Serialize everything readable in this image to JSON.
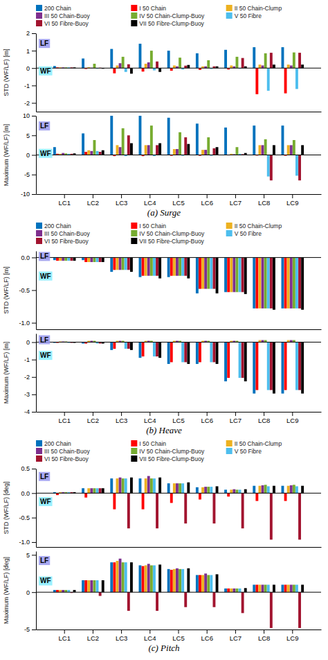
{
  "chart_data": [
    {
      "type": "bar",
      "categories": [
        "LC1",
        "LC2",
        "LC3",
        "LC4",
        "LC5",
        "LC6",
        "LC7",
        "LC8",
        "LC9"
      ],
      "series": [
        {
          "name": "200 Chain",
          "color": "#0072BD",
          "values": [
            0.12,
            0.55,
            1.1,
            1.4,
            1.0,
            0.85,
            1.05,
            1.2,
            1.2
          ]
        },
        {
          "name": "I 50 Chain",
          "color": "#FF0000",
          "values": [
            0.04,
            -0.05,
            -0.3,
            -0.2,
            -0.15,
            -0.1,
            -0.08,
            -1.5,
            -1.45
          ]
        },
        {
          "name": "II 50 Chain-Clump",
          "color": "#EDB120",
          "values": [
            0.04,
            0.05,
            0.15,
            0.25,
            0.15,
            0.1,
            0.15,
            0.2,
            0.2
          ]
        },
        {
          "name": "III 50 Chain-Buoy",
          "color": "#7E2F8E",
          "values": [
            0.04,
            0.02,
            0.28,
            0.33,
            0.1,
            0.1,
            0.1,
            0.15,
            0.15
          ]
        },
        {
          "name": "IV 50 Chain-Clump-Buoy",
          "color": "#77AC30",
          "values": [
            0.04,
            0.25,
            0.65,
            1.0,
            0.6,
            0.45,
            0.65,
            0.85,
            0.9
          ]
        },
        {
          "name": "V 50 Fibre",
          "color": "#4DBEEE",
          "values": [
            0.04,
            -0.04,
            -0.22,
            -0.13,
            -0.08,
            -0.05,
            -0.04,
            -1.3,
            -1.2
          ]
        },
        {
          "name": "VI 50 Fibre-Buoy",
          "color": "#A2142F",
          "values": [
            0.04,
            0.02,
            0.22,
            0.38,
            0.14,
            0.1,
            0.58,
            0.88,
            0.88
          ]
        },
        {
          "name": "VII 50 Fibre-Clump-Buoy",
          "color": "#000000",
          "values": [
            0.04,
            -0.04,
            -0.32,
            -0.22,
            0.18,
            0.1,
            0.1,
            0.2,
            0.2
          ]
        }
      ],
      "ylabel": "STD (WF/LF) [m]",
      "ylim": [
        -2.5,
        2.0
      ],
      "yticks": [
        -2,
        -1,
        0,
        1,
        2
      ],
      "grid": false,
      "legend": "top",
      "tick_labels": "y",
      "annotations": [
        {
          "text": "LF",
          "color": "#9999EE"
        },
        {
          "text": "WF",
          "color": "#88EEFF"
        }
      ]
    },
    {
      "type": "bar",
      "title": "(a)  Surge",
      "categories": [
        "LC1",
        "LC2",
        "LC3",
        "LC4",
        "LC5",
        "LC6",
        "LC7",
        "LC8",
        "LC9"
      ],
      "series": [
        {
          "name": "200 Chain",
          "color": "#0072BD",
          "values": [
            2.0,
            5.5,
            10.0,
            10.0,
            9.5,
            8.0,
            7.0,
            7.5,
            7.5
          ]
        },
        {
          "name": "I 50 Chain",
          "color": "#FF0000",
          "values": [
            0.3,
            0.8,
            -0.3,
            -0.3,
            -0.2,
            -0.2,
            -0.1,
            -0.15,
            -0.2
          ]
        },
        {
          "name": "II 50 Chain-Clump",
          "color": "#EDB120",
          "values": [
            0.3,
            1.2,
            2.5,
            2.5,
            1.5,
            1.3,
            0.3,
            2.5,
            2.5
          ]
        },
        {
          "name": "III 50 Chain-Buoy",
          "color": "#7E2F8E",
          "values": [
            0.5,
            1.0,
            2.0,
            2.5,
            1.5,
            1.3,
            0.2,
            2.5,
            2.5
          ]
        },
        {
          "name": "IV 50 Chain-Clump-Buoy",
          "color": "#77AC30",
          "values": [
            0.4,
            3.8,
            6.8,
            7.5,
            5.8,
            4.5,
            2.0,
            4.0,
            3.8
          ]
        },
        {
          "name": "V 50 Fibre",
          "color": "#4DBEEE",
          "values": [
            0.3,
            1.0,
            -0.3,
            -0.3,
            -0.2,
            -0.2,
            0.3,
            -5.5,
            -5.3
          ]
        },
        {
          "name": "VI 50 Fibre-Buoy",
          "color": "#A2142F",
          "values": [
            0.3,
            0.8,
            5.0,
            2.5,
            4.5,
            1.7,
            0.2,
            -6.5,
            -6.5
          ]
        },
        {
          "name": "VII 50 Fibre-Clump-Buoy",
          "color": "#000000",
          "values": [
            0.4,
            1.2,
            3.0,
            3.0,
            2.8,
            2.0,
            0.5,
            2.5,
            2.5
          ]
        }
      ],
      "ylabel": "Maximum (WF/LF) [m]",
      "ylim": [
        -10,
        10
      ],
      "yticks": [
        -10,
        -5,
        0,
        5,
        10
      ],
      "grid": false,
      "annotations": [
        {
          "text": "LF",
          "color": "#9999EE"
        },
        {
          "text": "WF",
          "color": "#88EEFF"
        }
      ]
    },
    {
      "type": "bar",
      "categories": [
        "LC1",
        "LC2",
        "LC3",
        "LC4",
        "LC5",
        "LC6",
        "LC7",
        "LC8",
        "LC9"
      ],
      "series": [
        {
          "name": "200 Chain",
          "color": "#0072BD",
          "values": [
            -0.04,
            -0.04,
            -0.22,
            -0.3,
            -0.3,
            -0.55,
            -0.53,
            -0.78,
            -0.78
          ]
        },
        {
          "name": "I 50 Chain",
          "color": "#FF0000",
          "values": [
            -0.05,
            -0.07,
            -0.19,
            -0.28,
            -0.28,
            -0.48,
            -0.53,
            -0.78,
            -0.78
          ]
        },
        {
          "name": "II 50 Chain-Clump",
          "color": "#EDB120",
          "values": [
            -0.05,
            -0.07,
            -0.19,
            -0.28,
            -0.28,
            -0.48,
            -0.53,
            -0.78,
            -0.78
          ]
        },
        {
          "name": "III 50 Chain-Buoy",
          "color": "#7E2F8E",
          "values": [
            -0.05,
            -0.07,
            -0.19,
            -0.28,
            -0.28,
            -0.48,
            -0.53,
            -0.78,
            -0.78
          ]
        },
        {
          "name": "IV 50 Chain-Clump-Buoy",
          "color": "#77AC30",
          "values": [
            -0.05,
            -0.07,
            -0.19,
            -0.28,
            -0.28,
            -0.48,
            -0.53,
            -0.78,
            -0.78
          ]
        },
        {
          "name": "V 50 Fibre",
          "color": "#4DBEEE",
          "values": [
            -0.05,
            -0.07,
            -0.19,
            -0.28,
            -0.28,
            -0.48,
            -0.53,
            -0.78,
            -0.78
          ]
        },
        {
          "name": "VI 50 Fibre-Buoy",
          "color": "#A2142F",
          "values": [
            -0.05,
            -0.07,
            -0.19,
            -0.28,
            -0.28,
            -0.48,
            -0.53,
            -0.78,
            -0.78
          ]
        },
        {
          "name": "VII 50 Fibre-Clump-Buoy",
          "color": "#000000",
          "values": [
            -0.05,
            -0.07,
            -0.22,
            -0.32,
            -0.32,
            -0.55,
            -0.56,
            -0.8,
            -0.8
          ]
        }
      ],
      "ylabel": "STD (WF/LF) [m]",
      "ylim": [
        -1.1,
        0.1
      ],
      "yticks": [
        {
          "value": -1.0,
          "label": "-1.0"
        },
        -0.5,
        {
          "value": 0.0,
          "label": "0.0"
        }
      ],
      "grid": false,
      "legend": "top",
      "tick_labels": "y",
      "annotations": [
        {
          "text": "LF",
          "color": "#9999EE"
        },
        {
          "text": "WF",
          "color": "#88EEFF"
        }
      ]
    },
    {
      "type": "bar",
      "title": "(b)  Heave",
      "categories": [
        "LC1",
        "LC2",
        "LC3",
        "LC4",
        "LC5",
        "LC6",
        "LC7",
        "LC8",
        "LC9"
      ],
      "series": [
        {
          "name": "200 Chain",
          "color": "#0072BD",
          "values": [
            -0.04,
            -0.08,
            -0.45,
            -0.9,
            -1.25,
            -1.25,
            -2.25,
            -2.95,
            -2.95
          ]
        },
        {
          "name": "I 50 Chain",
          "color": "#FF0000",
          "values": [
            -0.04,
            -0.08,
            -0.38,
            -0.82,
            -1.15,
            -1.15,
            -2.05,
            -2.75,
            -2.75
          ]
        },
        {
          "name": "II 50 Chain-Clump",
          "color": "#EDB120",
          "values": [
            0.04,
            0.08,
            0.08,
            0.08,
            0.08,
            0.08,
            0.08,
            0.12,
            0.12
          ]
        },
        {
          "name": "III 50 Chain-Buoy",
          "color": "#7E2F8E",
          "values": [
            0.04,
            0.08,
            0.08,
            0.08,
            0.08,
            0.08,
            0.08,
            0.12,
            0.12
          ]
        },
        {
          "name": "IV 50 Chain-Clump-Buoy",
          "color": "#77AC30",
          "values": [
            0.04,
            0.08,
            0.08,
            0.08,
            0.08,
            0.08,
            0.08,
            0.12,
            0.12
          ]
        },
        {
          "name": "V 50 Fibre",
          "color": "#4DBEEE",
          "values": [
            -0.04,
            -0.08,
            -0.38,
            -0.82,
            -1.15,
            -1.15,
            -2.05,
            -2.75,
            -2.75
          ]
        },
        {
          "name": "VI 50 Fibre-Buoy",
          "color": "#A2142F",
          "values": [
            -0.04,
            -0.08,
            -0.38,
            -0.82,
            -1.15,
            -1.15,
            -2.05,
            -2.75,
            -2.75
          ]
        },
        {
          "name": "VII 50 Fibre-Clump-Buoy",
          "color": "#000000",
          "values": [
            -0.04,
            -0.08,
            -0.45,
            -0.9,
            -1.25,
            -1.25,
            -2.25,
            -2.95,
            -2.95
          ]
        }
      ],
      "ylabel": "Maximum (WF/LF) [m]",
      "ylim": [
        -4.0,
        0.5
      ],
      "yticks": [
        -4,
        -3,
        -2,
        -1,
        0
      ],
      "grid": false,
      "annotations": [
        {
          "text": "LF",
          "color": "#9999EE"
        },
        {
          "text": "WF",
          "color": "#88EEFF"
        }
      ]
    },
    {
      "type": "bar",
      "categories": [
        "LC1",
        "LC2",
        "LC3",
        "LC4",
        "LC5",
        "LC6",
        "LC7",
        "LC8",
        "LC9"
      ],
      "series": [
        {
          "name": "200 Chain",
          "color": "#0072BD",
          "values": [
            0.02,
            0.1,
            0.3,
            0.3,
            0.2,
            0.12,
            0.07,
            0.15,
            0.15
          ]
        },
        {
          "name": "I 50 Chain",
          "color": "#FF0000",
          "values": [
            -0.04,
            -0.09,
            -0.33,
            -0.33,
            -0.2,
            -0.13,
            -0.07,
            -0.16,
            -0.16
          ]
        },
        {
          "name": "II 50 Chain-Clump",
          "color": "#EDB120",
          "values": [
            0.02,
            0.1,
            0.3,
            0.3,
            0.2,
            0.12,
            0.07,
            0.15,
            0.15
          ]
        },
        {
          "name": "III 50 Chain-Buoy",
          "color": "#7E2F8E",
          "values": [
            0.02,
            0.1,
            0.32,
            0.35,
            0.2,
            0.13,
            0.08,
            0.16,
            0.16
          ]
        },
        {
          "name": "IV 50 Chain-Clump-Buoy",
          "color": "#77AC30",
          "values": [
            0.02,
            0.1,
            0.3,
            0.3,
            0.2,
            0.13,
            0.07,
            0.17,
            0.17
          ]
        },
        {
          "name": "V 50 Fibre",
          "color": "#4DBEEE",
          "values": [
            0.02,
            0.1,
            0.3,
            0.3,
            0.2,
            0.13,
            0.07,
            0.14,
            0.14
          ]
        },
        {
          "name": "VI 50 Fibre-Buoy",
          "color": "#A2142F",
          "values": [
            0.02,
            0.1,
            -0.72,
            -0.72,
            -0.62,
            -0.62,
            -0.72,
            -0.95,
            -0.95
          ]
        },
        {
          "name": "VII 50 Fibre-Clump-Buoy",
          "color": "#000000",
          "values": [
            0.02,
            0.1,
            0.32,
            0.32,
            0.22,
            0.14,
            0.08,
            0.15,
            0.15
          ]
        }
      ],
      "ylabel": "STD (WF/LF) [deg]",
      "ylim": [
        -1.1,
        0.5
      ],
      "yticks": [
        {
          "value": -1.0,
          "label": "-1.0"
        },
        -0.5,
        {
          "value": 0.0,
          "label": "0.0"
        },
        0.5
      ],
      "grid": false,
      "legend": "top",
      "tick_labels": "y",
      "annotations": [
        {
          "text": "LF",
          "color": "#9999EE"
        },
        {
          "text": "WF",
          "color": "#88EEFF"
        }
      ]
    },
    {
      "type": "bar",
      "title": "(c)  Pitch",
      "categories": [
        "LC1",
        "LC2",
        "LC3",
        "LC4",
        "LC5",
        "LC6",
        "LC7",
        "LC8",
        "LC9"
      ],
      "series": [
        {
          "name": "200 Chain",
          "color": "#0072BD",
          "values": [
            0.3,
            1.6,
            4.0,
            3.6,
            3.1,
            2.3,
            0.5,
            1.0,
            1.0
          ]
        },
        {
          "name": "I 50 Chain",
          "color": "#FF0000",
          "values": [
            0.3,
            1.6,
            4.0,
            3.5,
            3.0,
            2.3,
            0.5,
            1.0,
            1.0
          ]
        },
        {
          "name": "II 50 Chain-Clump",
          "color": "#EDB120",
          "values": [
            0.3,
            1.6,
            4.2,
            3.6,
            3.1,
            2.3,
            0.5,
            1.0,
            1.0
          ]
        },
        {
          "name": "III 50 Chain-Buoy",
          "color": "#7E2F8E",
          "values": [
            0.3,
            1.6,
            4.5,
            3.8,
            3.2,
            2.5,
            0.5,
            1.0,
            1.0
          ]
        },
        {
          "name": "IV 50 Chain-Clump-Buoy",
          "color": "#77AC30",
          "values": [
            0.3,
            1.6,
            4.0,
            3.6,
            3.1,
            2.3,
            0.5,
            1.0,
            1.0
          ]
        },
        {
          "name": "V 50 Fibre",
          "color": "#4DBEEE",
          "values": [
            0.3,
            1.6,
            4.0,
            3.6,
            3.1,
            2.3,
            0.5,
            1.0,
            1.0
          ]
        },
        {
          "name": "VI 50 Fibre-Buoy",
          "color": "#A2142F",
          "values": [
            -0.1,
            -0.5,
            -2.5,
            -2.5,
            -2.0,
            -2.0,
            -2.8,
            -4.8,
            -4.8
          ]
        },
        {
          "name": "VII 50 Fibre-Clump-Buoy",
          "color": "#000000",
          "values": [
            0.3,
            1.6,
            4.0,
            3.7,
            3.2,
            2.4,
            0.55,
            1.0,
            1.0
          ]
        }
      ],
      "ylabel": "Maximum (WF/LF) [deg]",
      "ylim": [
        -5.0,
        5.5
      ],
      "yticks": [
        -5,
        0,
        5
      ],
      "grid": false,
      "annotations": [
        {
          "text": "LF",
          "color": "#9999EE"
        },
        {
          "text": "WF",
          "color": "#88EEFF"
        }
      ]
    }
  ]
}
